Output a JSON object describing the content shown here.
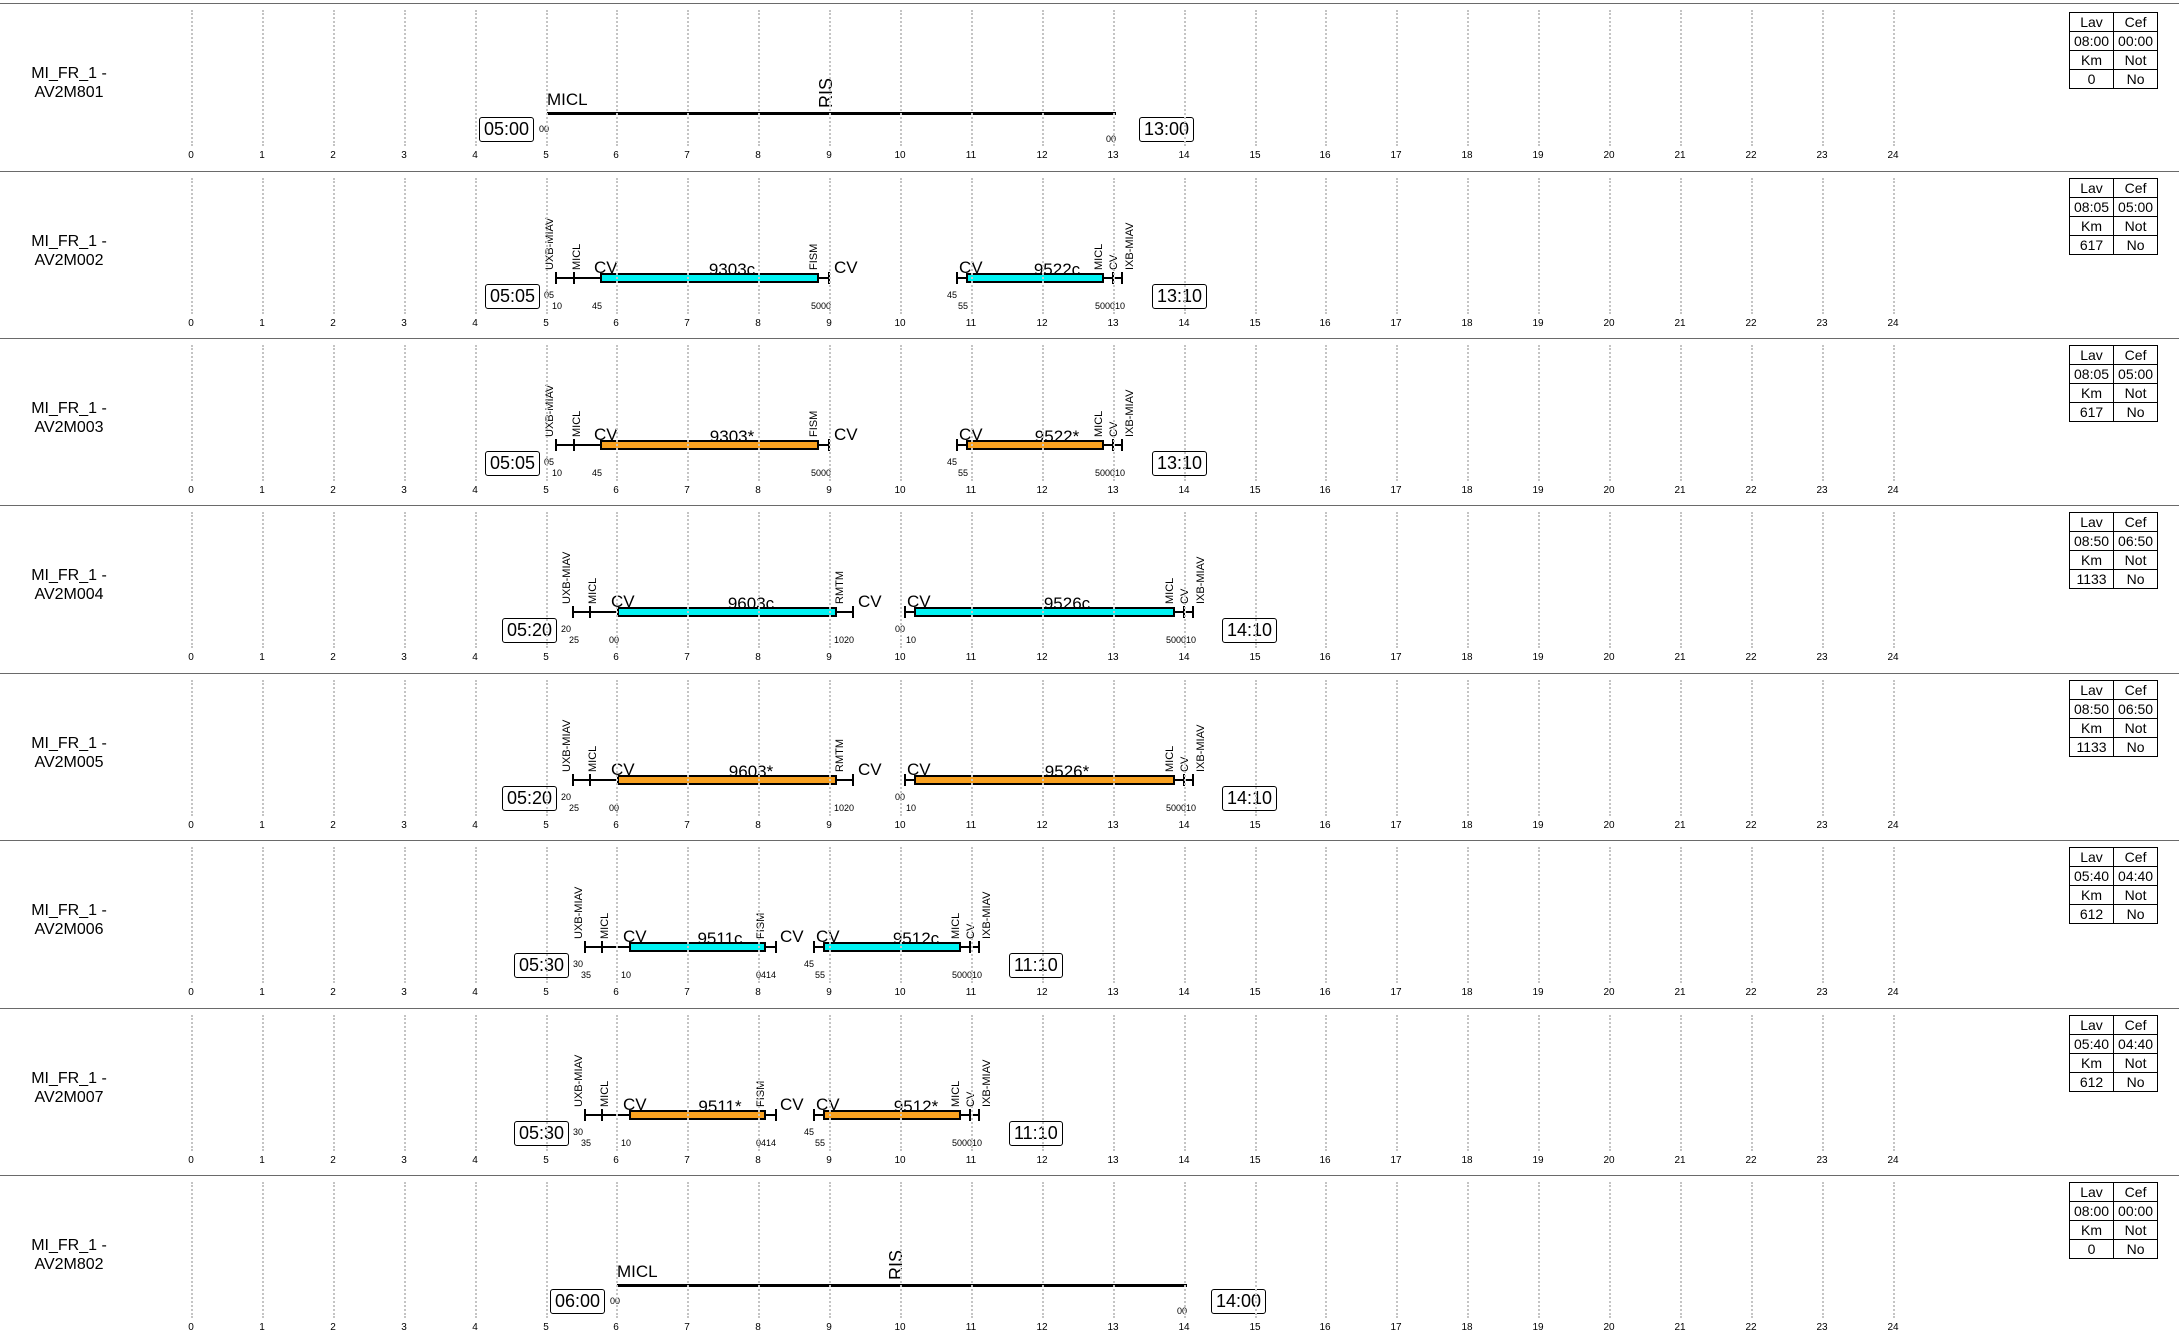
{
  "hour_ticks": [
    "0",
    "1",
    "2",
    "3",
    "4",
    "5",
    "6",
    "7",
    "8",
    "9",
    "10",
    "11",
    "12",
    "13",
    "14",
    "15",
    "16",
    "17",
    "18",
    "19",
    "20",
    "21",
    "22",
    "23",
    "24"
  ],
  "rows": [
    {
      "name_line1": "MI_FR_1 -",
      "name_line2": "AV2M801",
      "start_time": "05:00",
      "end_time": "13:00",
      "info": {
        "h1": "Lav",
        "h2": "Cef",
        "v1": "08:00",
        "v2": "00:00",
        "h3": "Km",
        "h4": "Not",
        "v3": "0",
        "v4": "No"
      },
      "labels": {
        "micl": "MICL",
        "ris": "RIS",
        "m_start": "00",
        "m_end": "00"
      }
    },
    {
      "name_line1": "MI_FR_1 -",
      "name_line2": "AV2M002",
      "start_time": "05:05",
      "end_time": "13:10",
      "info": {
        "h1": "Lav",
        "h2": "Cef",
        "v1": "08:05",
        "v2": "05:00",
        "h3": "Km",
        "h4": "Not",
        "v3": "617",
        "v4": "No"
      },
      "labels": {
        "uxb": "UXB-MIAV",
        "micl": "MICL",
        "cv": "CV",
        "train1": "9303c",
        "fism": "FISM",
        "train2": "9522c",
        "micl2": "MICL",
        "cv2": "CV",
        "ixb": "IXB-MIAV",
        "m1": "05",
        "m2": "10",
        "m3": "45",
        "m4": "5000",
        "m5": "45",
        "m6": "55",
        "m7": "500010"
      }
    },
    {
      "name_line1": "MI_FR_1 -",
      "name_line2": "AV2M003",
      "start_time": "05:05",
      "end_time": "13:10",
      "info": {
        "h1": "Lav",
        "h2": "Cef",
        "v1": "08:05",
        "v2": "05:00",
        "h3": "Km",
        "h4": "Not",
        "v3": "617",
        "v4": "No"
      },
      "labels": {
        "uxb": "UXB-MIAV",
        "micl": "MICL",
        "cv": "CV",
        "train1": "9303*",
        "fism": "FISM",
        "train2": "9522*",
        "micl2": "MICL",
        "cv2": "CV",
        "ixb": "IXB-MIAV",
        "m1": "05",
        "m2": "10",
        "m3": "45",
        "m4": "5000",
        "m5": "45",
        "m6": "55",
        "m7": "500010"
      }
    },
    {
      "name_line1": "MI_FR_1 -",
      "name_line2": "AV2M004",
      "start_time": "05:20",
      "end_time": "14:10",
      "info": {
        "h1": "Lav",
        "h2": "Cef",
        "v1": "08:50",
        "v2": "06:50",
        "h3": "Km",
        "h4": "Not",
        "v3": "1133",
        "v4": "No"
      },
      "labels": {
        "uxb": "UXB-MIAV",
        "micl": "MICL",
        "cv": "CV",
        "train1": "9603c",
        "fism": "RMTM",
        "train2": "9526c",
        "micl2": "MICL",
        "cv2": "CV",
        "ixb": "IXB-MIAV",
        "m1": "20",
        "m2": "25",
        "m3": "00",
        "m4": "1020",
        "m5": "00",
        "m6": "10",
        "m7": "500010"
      }
    },
    {
      "name_line1": "MI_FR_1 -",
      "name_line2": "AV2M005",
      "start_time": "05:20",
      "end_time": "14:10",
      "info": {
        "h1": "Lav",
        "h2": "Cef",
        "v1": "08:50",
        "v2": "06:50",
        "h3": "Km",
        "h4": "Not",
        "v3": "1133",
        "v4": "No"
      },
      "labels": {
        "uxb": "UXB-MIAV",
        "micl": "MICL",
        "cv": "CV",
        "train1": "9603*",
        "fism": "RMTM",
        "train2": "9526*",
        "micl2": "MICL",
        "cv2": "CV",
        "ixb": "IXB-MIAV",
        "m1": "20",
        "m2": "25",
        "m3": "00",
        "m4": "1020",
        "m5": "00",
        "m6": "10",
        "m7": "500010"
      }
    },
    {
      "name_line1": "MI_FR_1 -",
      "name_line2": "AV2M006",
      "start_time": "05:30",
      "end_time": "11:10",
      "info": {
        "h1": "Lav",
        "h2": "Cef",
        "v1": "05:40",
        "v2": "04:40",
        "h3": "Km",
        "h4": "Not",
        "v3": "612",
        "v4": "No"
      },
      "labels": {
        "uxb": "UXB-MIAV",
        "micl": "MICL",
        "cv": "CV",
        "train1": "9511c",
        "fism": "FISM",
        "train2": "9512c",
        "micl2": "MICL",
        "cv2": "CV",
        "ixb": "IXB-MIAV",
        "m1": "30",
        "m2": "35",
        "m3": "10",
        "m4": "0414",
        "m5": "45",
        "m6": "55",
        "m7": "500010"
      }
    },
    {
      "name_line1": "MI_FR_1 -",
      "name_line2": "AV2M007",
      "start_time": "05:30",
      "end_time": "11:10",
      "info": {
        "h1": "Lav",
        "h2": "Cef",
        "v1": "05:40",
        "v2": "04:40",
        "h3": "Km",
        "h4": "Not",
        "v3": "612",
        "v4": "No"
      },
      "labels": {
        "uxb": "UXB-MIAV",
        "micl": "MICL",
        "cv": "CV",
        "train1": "9511*",
        "fism": "FISM",
        "train2": "9512*",
        "micl2": "MICL",
        "cv2": "CV",
        "ixb": "IXB-MIAV",
        "m1": "30",
        "m2": "35",
        "m3": "10",
        "m4": "0414",
        "m5": "45",
        "m6": "55",
        "m7": "500010"
      }
    },
    {
      "name_line1": "MI_FR_1 -",
      "name_line2": "AV2M802",
      "start_time": "06:00",
      "end_time": "14:00",
      "info": {
        "h1": "Lav",
        "h2": "Cef",
        "v1": "08:00",
        "v2": "00:00",
        "h3": "Km",
        "h4": "Not",
        "v3": "0",
        "v4": "No"
      },
      "labels": {
        "micl": "MICL",
        "ris": "RIS",
        "m_start": "00",
        "m_end": "00"
      }
    }
  ]
}
